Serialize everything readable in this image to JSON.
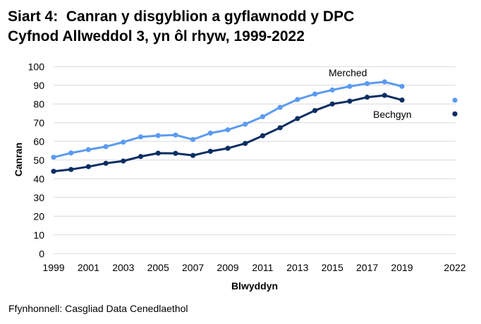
{
  "title_line1": "Siart 4:  Canran y disgyblion a gyflawnodd y DPC",
  "title_line2": "Cyfnod Allweddol 3, yn ôl rhyw, 1999-2022",
  "footer": "Ffynhonnell: Casgliad Data Cenedlaethol",
  "colors": {
    "merched": "#5B9BF0",
    "bechgyn": "#0B2E63",
    "grid": "#D9D9D9"
  },
  "chart_data": {
    "type": "line",
    "title": "Siart 4:  Canran y disgyblion a gyflawnodd y DPC Cyfnod Allweddol 3, yn ôl rhyw, 1999-2022",
    "xlabel": "Blwyddyn",
    "ylabel": "Canran",
    "ylim": [
      0,
      100
    ],
    "yticks": [
      0,
      10,
      20,
      30,
      40,
      50,
      60,
      70,
      80,
      90,
      100
    ],
    "xtick_labels": [
      "1999",
      "2001",
      "2003",
      "2005",
      "2007",
      "2009",
      "2011",
      "2013",
      "2015",
      "2017",
      "2019",
      "2022"
    ],
    "grid": true,
    "legend": "inline labels",
    "x": [
      1999,
      2000,
      2001,
      2002,
      2003,
      2004,
      2005,
      2006,
      2007,
      2008,
      2009,
      2010,
      2011,
      2012,
      2013,
      2014,
      2015,
      2016,
      2017,
      2018,
      2019,
      2022
    ],
    "series": [
      {
        "name": "Merched",
        "values": [
          51.5,
          53.8,
          55.6,
          57.2,
          59.6,
          62.4,
          63.1,
          63.4,
          61.0,
          64.4,
          66.2,
          69.2,
          73.2,
          78.2,
          82.4,
          85.3,
          87.5,
          89.4,
          90.9,
          91.8,
          89.4,
          82.0
        ]
      },
      {
        "name": "Bechgyn",
        "values": [
          44.0,
          45.0,
          46.5,
          48.3,
          49.5,
          51.9,
          53.7,
          53.6,
          52.5,
          54.7,
          56.3,
          58.9,
          63.0,
          67.3,
          72.2,
          76.5,
          80.0,
          81.5,
          83.6,
          84.6,
          82.1,
          74.7
        ]
      }
    ],
    "annotations": [
      {
        "text": "Merched",
        "near_year": 2016
      },
      {
        "text": "Bechgyn",
        "near_year": 2020
      }
    ],
    "notes": "2022 shown as isolated points (no line connecting from 2019)"
  }
}
